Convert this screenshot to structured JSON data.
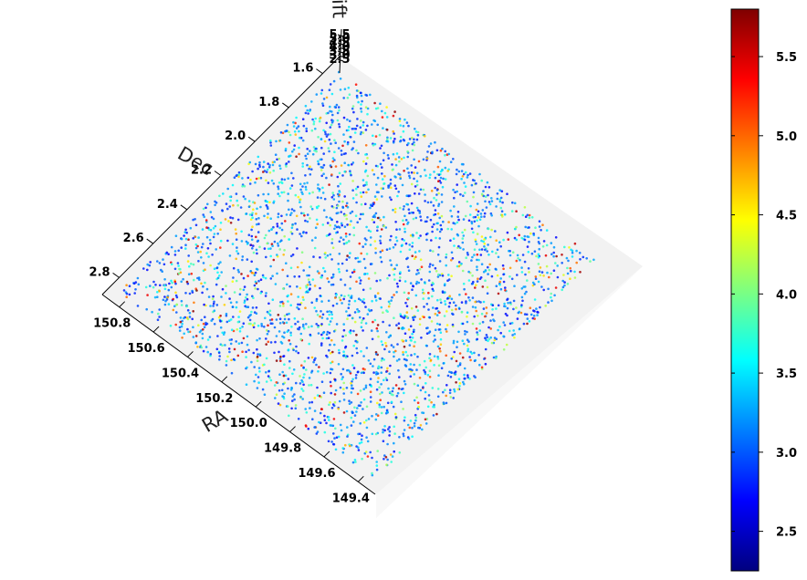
{
  "chart_data": {
    "type": "scatter",
    "projection": "3d",
    "title": "",
    "x_axis": {
      "label": "RA",
      "ticks": [
        "150.8",
        "150.6",
        "150.4",
        "150.2",
        "150.0",
        "149.8",
        "149.6",
        "149.4"
      ],
      "range": [
        149.3,
        150.9
      ]
    },
    "y_axis": {
      "label": "Dec",
      "ticks": [
        "1.6",
        "1.8",
        "2.0",
        "2.2",
        "2.4",
        "2.6",
        "2.8"
      ],
      "range": [
        1.5,
        2.9
      ]
    },
    "z_axis": {
      "label": "Redshift",
      "ticks": [
        "5.5",
        "5.0",
        "4.5",
        "4.0",
        "3.5",
        "3.0",
        "2.5"
      ]
    },
    "color_by": "Redshift",
    "colorbar": {
      "colormap": "jet",
      "range": [
        2.25,
        5.8
      ],
      "ticks": [
        "5.5",
        "5.0",
        "4.5",
        "4.0",
        "3.5",
        "3.0",
        "2.5"
      ],
      "tick_values": [
        5.5,
        5.0,
        4.5,
        4.0,
        3.5,
        3.0,
        2.5
      ]
    },
    "point_count": 3000,
    "ra_range": [
      149.35,
      150.85
    ],
    "dec_range": [
      1.55,
      2.85
    ],
    "redshift_distribution": {
      "peak": 3.0,
      "min": 2.3,
      "max": 5.8
    }
  }
}
